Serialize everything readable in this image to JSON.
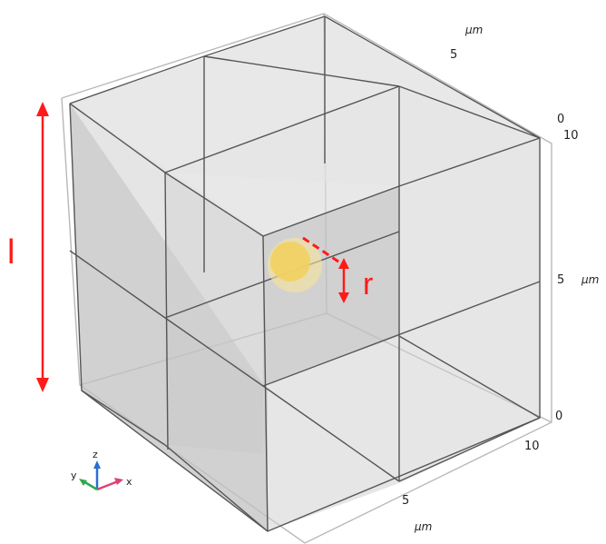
{
  "axes": {
    "unit_label": "µm",
    "x_ticks": [
      "5",
      "10"
    ],
    "y_ticks": [
      "5"
    ],
    "z_ticks": [
      "0",
      "5",
      "10"
    ],
    "extra_label": "0"
  },
  "annotations": {
    "length_label": "l",
    "radius_label": "r"
  },
  "triad": {
    "x": "x",
    "y": "y",
    "z": "z"
  },
  "colors": {
    "annotation": "#ff1a1a",
    "sphere": "#f2d060",
    "box_fill": "#cfcfcf",
    "triad_x": "#e0407a",
    "triad_y": "#2ca84a",
    "triad_z": "#2a6fd6"
  }
}
